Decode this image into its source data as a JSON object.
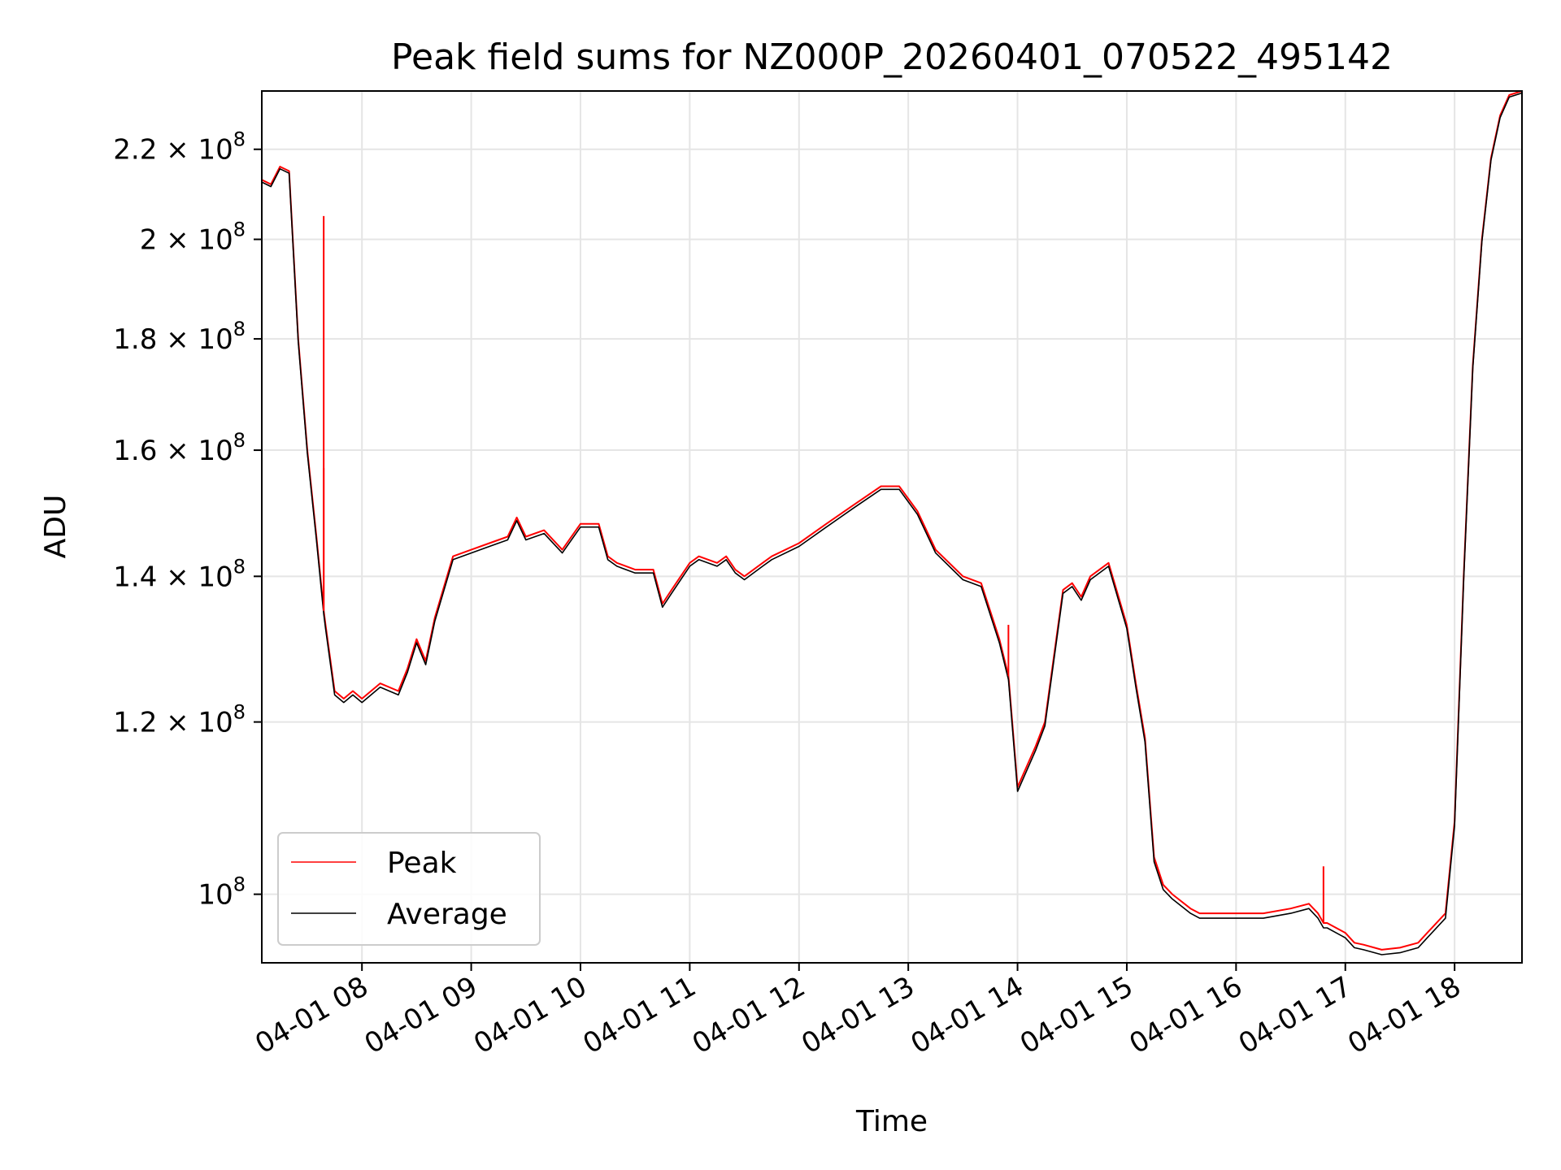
{
  "chart_data": {
    "type": "line",
    "title": "Peak field sums for NZ000P_20260401_070522_495142",
    "xlabel": "Time",
    "ylabel": "ADU",
    "y_scale": "log",
    "grid": true,
    "legend_position": "lower-left",
    "xlim": [
      "2026-04-01 07:05",
      "2026-04-01 18:37"
    ],
    "ylim": [
      93000000,
      234000000
    ],
    "x_ticks": [
      "2026-04-01 08:00",
      "2026-04-01 09:00",
      "2026-04-01 10:00",
      "2026-04-01 11:00",
      "2026-04-01 12:00",
      "2026-04-01 13:00",
      "2026-04-01 14:00",
      "2026-04-01 15:00",
      "2026-04-01 16:00",
      "2026-04-01 17:00",
      "2026-04-01 18:00"
    ],
    "x_tick_labels": [
      "04-01 08",
      "04-01 09",
      "04-01 10",
      "04-01 11",
      "04-01 12",
      "04-01 13",
      "04-01 14",
      "04-01 15",
      "04-01 16",
      "04-01 17",
      "04-01 18"
    ],
    "y_ticks": [
      100000000,
      120000000,
      140000000,
      160000000,
      180000000,
      200000000,
      220000000
    ],
    "y_tick_labels": [
      {
        "mantissa": "",
        "exp": "8"
      },
      {
        "mantissa": "1.2 × ",
        "exp": "8"
      },
      {
        "mantissa": "1.4 × ",
        "exp": "8"
      },
      {
        "mantissa": "1.6 × ",
        "exp": "8"
      },
      {
        "mantissa": "1.8 × ",
        "exp": "8"
      },
      {
        "mantissa": "2 × ",
        "exp": "8"
      },
      {
        "mantissa": "2.2 × ",
        "exp": "8"
      }
    ],
    "y_tick_base": "10",
    "x": [
      "2026-04-01 07:05",
      "2026-04-01 07:10",
      "2026-04-01 07:15",
      "2026-04-01 07:20",
      "2026-04-01 07:25",
      "2026-04-01 07:30",
      "2026-04-01 07:35",
      "2026-04-01 07:39",
      "2026-04-01 07:40",
      "2026-04-01 07:45",
      "2026-04-01 07:50",
      "2026-04-01 07:55",
      "2026-04-01 08:00",
      "2026-04-01 08:10",
      "2026-04-01 08:20",
      "2026-04-01 08:25",
      "2026-04-01 08:30",
      "2026-04-01 08:35",
      "2026-04-01 08:40",
      "2026-04-01 08:50",
      "2026-04-01 09:00",
      "2026-04-01 09:10",
      "2026-04-01 09:20",
      "2026-04-01 09:25",
      "2026-04-01 09:30",
      "2026-04-01 09:40",
      "2026-04-01 09:50",
      "2026-04-01 10:00",
      "2026-04-01 10:10",
      "2026-04-01 10:15",
      "2026-04-01 10:20",
      "2026-04-01 10:30",
      "2026-04-01 10:40",
      "2026-04-01 10:45",
      "2026-04-01 10:50",
      "2026-04-01 11:00",
      "2026-04-01 11:05",
      "2026-04-01 11:15",
      "2026-04-01 11:20",
      "2026-04-01 11:25",
      "2026-04-01 11:30",
      "2026-04-01 11:40",
      "2026-04-01 11:45",
      "2026-04-01 12:00",
      "2026-04-01 12:15",
      "2026-04-01 12:30",
      "2026-04-01 12:45",
      "2026-04-01 12:55",
      "2026-04-01 13:05",
      "2026-04-01 13:15",
      "2026-04-01 13:30",
      "2026-04-01 13:40",
      "2026-04-01 13:50",
      "2026-04-01 13:55",
      "2026-04-01 14:00",
      "2026-04-01 14:10",
      "2026-04-01 14:15",
      "2026-04-01 14:25",
      "2026-04-01 14:30",
      "2026-04-01 14:35",
      "2026-04-01 14:40",
      "2026-04-01 14:50",
      "2026-04-01 15:00",
      "2026-04-01 15:05",
      "2026-04-01 15:10",
      "2026-04-01 15:15",
      "2026-04-01 15:20",
      "2026-04-01 15:25",
      "2026-04-01 15:35",
      "2026-04-01 15:40",
      "2026-04-01 15:50",
      "2026-04-01 16:00",
      "2026-04-01 16:15",
      "2026-04-01 16:30",
      "2026-04-01 16:40",
      "2026-04-01 16:45",
      "2026-04-01 16:48",
      "2026-04-01 16:50",
      "2026-04-01 17:00",
      "2026-04-01 17:05",
      "2026-04-01 17:10",
      "2026-04-01 17:20",
      "2026-04-01 17:30",
      "2026-04-01 17:40",
      "2026-04-01 17:45",
      "2026-04-01 17:55",
      "2026-04-01 18:00",
      "2026-04-01 18:05",
      "2026-04-01 18:10",
      "2026-04-01 18:15",
      "2026-04-01 18:20",
      "2026-04-01 18:25",
      "2026-04-01 18:30",
      "2026-04-01 18:37"
    ],
    "series": [
      {
        "name": "Peak",
        "color": "#ff0000",
        "values": [
          213000000,
          212000000,
          216000000,
          215000000,
          180000000,
          160000000,
          146000000,
          135000000,
          133000000,
          124000000,
          123000000,
          124000000,
          123000000,
          125000000,
          124000000,
          127000000,
          131000000,
          128000000,
          134000000,
          143000000,
          144000000,
          145000000,
          146000000,
          149000000,
          146000000,
          147000000,
          144000000,
          148000000,
          148000000,
          143000000,
          142000000,
          141000000,
          141000000,
          136000000,
          138000000,
          142000000,
          143000000,
          142000000,
          143000000,
          141000000,
          140000000,
          142000000,
          143000000,
          145000000,
          148000000,
          151000000,
          154000000,
          154000000,
          150000000,
          144000000,
          140000000,
          139000000,
          131000000,
          126000000,
          112000000,
          117000000,
          120000000,
          138000000,
          139000000,
          137000000,
          140000000,
          142000000,
          133000000,
          125000000,
          118000000,
          104000000,
          101000000,
          100000000,
          98500000,
          98000000,
          98000000,
          98000000,
          98000000,
          98500000,
          99000000,
          98000000,
          97000000,
          97000000,
          96000000,
          95000000,
          94800000,
          94300000,
          94500000,
          95000000,
          96000000,
          98000000,
          108000000,
          140000000,
          175000000,
          200000000,
          218000000,
          228000000,
          233000000,
          234000000
        ]
      },
      {
        "name": "Average",
        "color": "#000000",
        "values": [
          212500000,
          211500000,
          215500000,
          214500000,
          179500000,
          159500000,
          145500000,
          134500000,
          132500000,
          123500000,
          122500000,
          123500000,
          122500000,
          124500000,
          123500000,
          126500000,
          130500000,
          127500000,
          133500000,
          142500000,
          143500000,
          144500000,
          145500000,
          148500000,
          145500000,
          146500000,
          143500000,
          147500000,
          147500000,
          142500000,
          141500000,
          140500000,
          140500000,
          135500000,
          137500000,
          141500000,
          142500000,
          141500000,
          142500000,
          140500000,
          139500000,
          141500000,
          142500000,
          144500000,
          147500000,
          150500000,
          153500000,
          153500000,
          149500000,
          143500000,
          139500000,
          138500000,
          130500000,
          125500000,
          111500000,
          116500000,
          119500000,
          137500000,
          138500000,
          136500000,
          139500000,
          141500000,
          132500000,
          124500000,
          117500000,
          103500000,
          100500000,
          99500000,
          98000000,
          97500000,
          97500000,
          97500000,
          97500000,
          98000000,
          98500000,
          97500000,
          96500000,
          96500000,
          95500000,
          94500000,
          94300000,
          93800000,
          94000000,
          94500000,
          95500000,
          97500000,
          107500000,
          139500000,
          174500000,
          199500000,
          217500000,
          227500000,
          232500000,
          233500000
        ]
      }
    ],
    "spikes": [
      {
        "series": "Peak",
        "x": "2026-04-01 07:39",
        "value": 205000000
      },
      {
        "series": "Peak",
        "x": "2026-04-01 07:39",
        "value": 157000000
      },
      {
        "series": "Peak",
        "x": "2026-04-01 13:55",
        "value": 133000000
      },
      {
        "series": "Peak",
        "x": "2026-04-01 16:48",
        "value": 103000000
      }
    ]
  }
}
